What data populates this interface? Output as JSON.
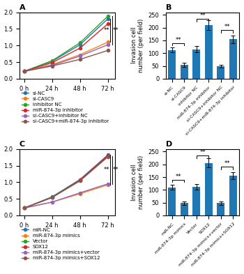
{
  "chart_data": [
    {
      "type": "line",
      "title": "A",
      "x": [
        0,
        24,
        48,
        72
      ],
      "xlim": [
        -4,
        78
      ],
      "xticks": [
        {
          "value": 0,
          "label": "0 h"
        },
        {
          "value": 24,
          "label": "24 h"
        },
        {
          "value": 48,
          "label": "48 h"
        },
        {
          "value": 72,
          "label": "72 h"
        }
      ],
      "ylim": [
        0.0,
        2.0
      ],
      "yticks": [
        0.0,
        0.5,
        1.0,
        1.5,
        2.0
      ],
      "marker": "o",
      "legend": "upper left",
      "series": [
        {
          "name": "si-NC",
          "values": [
            0.22,
            0.52,
            1.02,
            1.8
          ]
        },
        {
          "name": "si-CASC9",
          "values": [
            0.22,
            0.42,
            0.72,
            1.1
          ]
        },
        {
          "name": "inhibitor NC",
          "values": [
            0.22,
            0.54,
            1.08,
            1.88
          ]
        },
        {
          "name": "miR-874-3p inhibitor",
          "values": [
            0.22,
            0.48,
            0.92,
            1.65
          ]
        },
        {
          "name": "si-CASC9+inhibitor NC",
          "values": [
            0.22,
            0.4,
            0.68,
            1.02
          ]
        },
        {
          "name": "si-CASC9+miR-874-3p inhibitor",
          "values": [
            0.22,
            0.38,
            0.58,
            0.85
          ]
        }
      ],
      "annotations": [
        {
          "text": "**",
          "x": 74,
          "y": [
            1.8,
            1.1
          ]
        },
        {
          "text": "**",
          "x": 76,
          "y": [
            1.88,
            1.02
          ]
        }
      ]
    },
    {
      "type": "bar",
      "title": "B",
      "categories": [
        "si-NC",
        "si-CASC9",
        "inhibitor NC",
        "miR-874-3p inhibitor",
        "si-CASC9+inhibitor NC",
        "si-CASC9+miR-874-3p inhibitor"
      ],
      "values": [
        112,
        55,
        115,
        210,
        48,
        155
      ],
      "errors": [
        10,
        8,
        12,
        20,
        6,
        15
      ],
      "ylabel": "Invasion cell\nnumber (per field)",
      "ylim": [
        0,
        260
      ],
      "yticks": [
        0,
        50,
        100,
        150,
        200,
        250
      ],
      "annotations": [
        {
          "text": "**",
          "x1": 0,
          "x2": 1,
          "y": 140
        },
        {
          "text": "**",
          "x1": 2,
          "x2": 3,
          "y": 235
        },
        {
          "text": "**",
          "x1": 4,
          "x2": 5,
          "y": 190
        }
      ]
    },
    {
      "type": "line",
      "title": "C",
      "x": [
        0,
        24,
        48,
        72
      ],
      "xlim": [
        -4,
        78
      ],
      "xticks": [
        {
          "value": 0,
          "label": "0 h"
        },
        {
          "value": 24,
          "label": "24 h"
        },
        {
          "value": 48,
          "label": "48 h"
        },
        {
          "value": 72,
          "label": "72 h"
        }
      ],
      "ylim": [
        0.0,
        2.0
      ],
      "yticks": [
        0.0,
        0.5,
        1.0,
        1.5,
        2.0
      ],
      "marker": "o",
      "legend": "upper left",
      "series": [
        {
          "name": "miR-NC",
          "values": [
            0.22,
            0.56,
            1.08,
            1.82
          ]
        },
        {
          "name": "miR-874-3p mimics",
          "values": [
            0.22,
            0.4,
            0.65,
            0.92
          ]
        },
        {
          "name": "Vector",
          "values": [
            0.22,
            0.54,
            1.04,
            1.78
          ]
        },
        {
          "name": "SOX12",
          "values": [
            0.22,
            0.54,
            1.06,
            1.8
          ]
        },
        {
          "name": "miR-874-3p mimics+vector",
          "values": [
            0.22,
            0.4,
            0.68,
            0.95
          ]
        },
        {
          "name": "miR-874-3p mimics+SOX12",
          "values": [
            0.22,
            0.54,
            1.04,
            1.76
          ]
        }
      ],
      "annotations": [
        {
          "text": "**",
          "x": 74,
          "y": [
            1.82,
            0.92
          ]
        },
        {
          "text": "**",
          "x": 76,
          "y": [
            1.78,
            0.95
          ]
        }
      ]
    },
    {
      "type": "bar",
      "title": "D",
      "categories": [
        "miR-NC",
        "miR-874-3p mimics",
        "Vector",
        "SOX12",
        "miR-874-3p mimics+vector",
        "miR-874-3p mimics+SOX12"
      ],
      "values": [
        110,
        48,
        112,
        205,
        48,
        155
      ],
      "errors": [
        10,
        7,
        11,
        18,
        6,
        14
      ],
      "ylabel": "Invasion cell\nnumber (per field)",
      "ylim": [
        0,
        260
      ],
      "yticks": [
        0,
        50,
        100,
        150,
        200,
        250
      ],
      "annotations": [
        {
          "text": "**",
          "x1": 0,
          "x2": 1,
          "y": 140
        },
        {
          "text": "**",
          "x1": 2,
          "x2": 3,
          "y": 235
        },
        {
          "text": "**",
          "x1": 4,
          "x2": 5,
          "y": 190
        }
      ]
    }
  ]
}
